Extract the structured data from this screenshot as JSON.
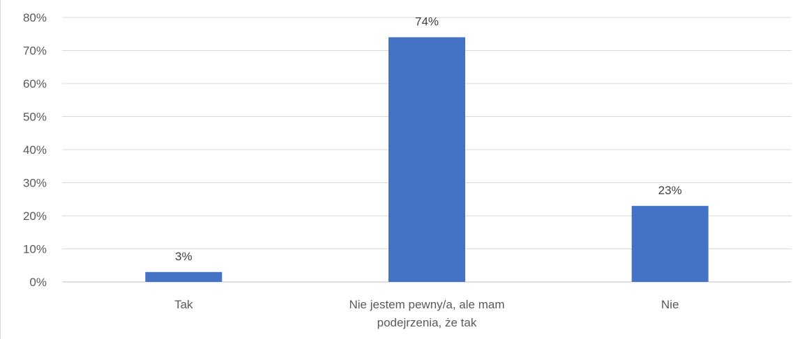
{
  "chart_data": {
    "type": "bar",
    "categories": [
      [
        "Tak"
      ],
      [
        "Nie jestem pewny/a, ale mam",
        "podejrzenia, że tak"
      ],
      [
        "Nie"
      ]
    ],
    "values": [
      3,
      74,
      23
    ],
    "data_labels": [
      "3%",
      "74%",
      "23%"
    ],
    "y_ticks": [
      "0%",
      "10%",
      "20%",
      "30%",
      "40%",
      "50%",
      "60%",
      "70%",
      "80%"
    ],
    "ylim": [
      0,
      80
    ],
    "title": "",
    "xlabel": "",
    "ylabel": "",
    "grid": true,
    "legend": "none",
    "colors": {
      "bar": "#4472c4",
      "grid": "#d9d9d9",
      "axis_text": "#595959"
    }
  }
}
